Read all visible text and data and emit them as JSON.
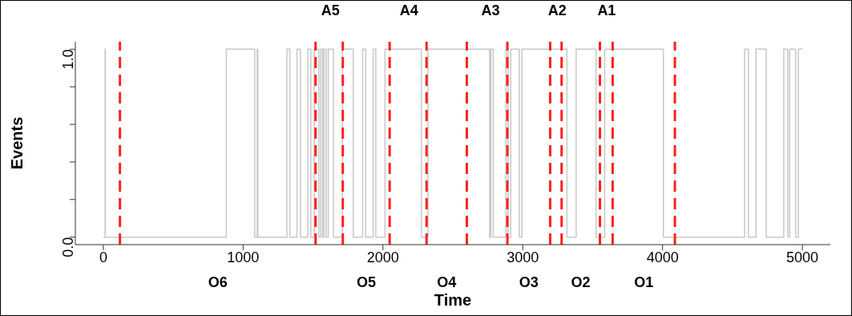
{
  "chart_data": {
    "type": "step",
    "xlabel": "Time",
    "ylabel": "Events",
    "x": [
      0,
      13,
      15,
      880,
      1083,
      1101,
      1105,
      1313,
      1334,
      1385,
      1410,
      1463,
      1484,
      1508,
      1542,
      1556,
      1569,
      1578,
      1594,
      1609,
      1647,
      1710,
      1788,
      1855,
      1877,
      1930,
      1949,
      2015,
      2275,
      2322,
      2763,
      2772,
      2789,
      2880,
      2895,
      2914,
      2975,
      2994,
      3316,
      3382,
      3524,
      3586,
      4006,
      4587,
      4614,
      4668,
      4741,
      4867,
      4895,
      4909,
      4952,
      4971,
      5000
    ],
    "series": [
      {
        "color": "#c8c8c8",
        "values": [
          0,
          1,
          0,
          1,
          0,
          1,
          0,
          1,
          0,
          1,
          0,
          1,
          0,
          1,
          0,
          1,
          0,
          1,
          0,
          1,
          0,
          1,
          0,
          1,
          0,
          1,
          0,
          1,
          0,
          1,
          0,
          1,
          0,
          1,
          0,
          1,
          0,
          1,
          0,
          1,
          0,
          1,
          0,
          1,
          0,
          1,
          0,
          1,
          0,
          1,
          0,
          1,
          1
        ]
      }
    ],
    "xlim": [
      -200,
      5200
    ],
    "xticks": [
      0,
      1000,
      2000,
      3000,
      4000,
      5000
    ],
    "ylim": [
      -0.04,
      1.04
    ],
    "yticks": [
      {
        "value": 0,
        "label": "0.0"
      },
      {
        "value": 0.2,
        "label": null
      },
      {
        "value": 0.4,
        "label": null
      },
      {
        "value": 0.6,
        "label": null
      },
      {
        "value": 0.8,
        "label": null
      },
      {
        "value": 1,
        "label": "1.0"
      }
    ],
    "grid": false,
    "legend": false,
    "ref_lines": [
      {
        "axis": "x",
        "value": 119,
        "color": "#ff2020",
        "line_style": "dashed"
      },
      {
        "axis": "x",
        "value": 1518,
        "color": "#ff2020",
        "line_style": "dashed"
      },
      {
        "axis": "x",
        "value": 1713,
        "color": "#ff2020",
        "line_style": "dashed"
      },
      {
        "axis": "x",
        "value": 2048,
        "color": "#ff2020",
        "line_style": "dashed"
      },
      {
        "axis": "x",
        "value": 2312,
        "color": "#ff2020",
        "line_style": "dashed"
      },
      {
        "axis": "x",
        "value": 2600,
        "color": "#ff2020",
        "line_style": "dashed"
      },
      {
        "axis": "x",
        "value": 2890,
        "color": "#ff2020",
        "line_style": "dashed"
      },
      {
        "axis": "x",
        "value": 3196,
        "color": "#ff2020",
        "line_style": "dashed"
      },
      {
        "axis": "x",
        "value": 3278,
        "color": "#ff2020",
        "line_style": "dashed"
      },
      {
        "axis": "x",
        "value": 3552,
        "color": "#ff2020",
        "line_style": "dashed"
      },
      {
        "axis": "x",
        "value": 3643,
        "color": "#ff2020",
        "line_style": "dashed"
      },
      {
        "axis": "x",
        "value": 4088,
        "color": "#ff2020",
        "line_style": "dashed"
      }
    ],
    "annotations": [
      {
        "text": "A5",
        "x": 1624,
        "y": 1
      },
      {
        "text": "A4",
        "x": 2186,
        "y": 1
      },
      {
        "text": "A3",
        "x": 2770,
        "y": 1
      },
      {
        "text": "A2",
        "x": 3247,
        "y": 1
      },
      {
        "text": "A1",
        "x": 3600,
        "y": 1
      },
      "O6",
      "O5",
      "O4",
      "O3",
      "O2",
      "O1"
    ]
  }
}
